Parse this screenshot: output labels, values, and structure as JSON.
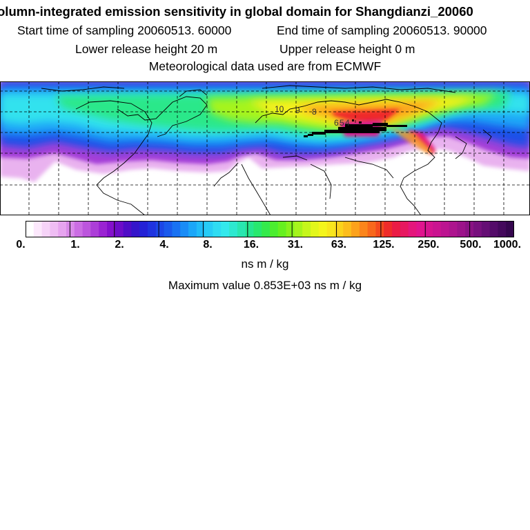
{
  "header": {
    "title": "olumn-integrated emission sensitivity in global domain for Shangdianzi_20060",
    "start_time": "Start time of sampling 20060513. 60000",
    "end_time": "End time of sampling 20060513. 90000",
    "lower_release": "Lower release height   20 m",
    "upper_release": "Upper release height    0 m",
    "met_data": "Meteorological data used are from ECMWF"
  },
  "map": {
    "contour_labels": [
      "10",
      "9",
      "8",
      "6",
      "5",
      "4"
    ]
  },
  "colorbar": {
    "tick_labels": [
      "0.",
      "1.",
      "2.",
      "4.",
      "8.",
      "16.",
      "31.",
      "63.",
      "125.",
      "250.",
      "500.",
      "1000."
    ],
    "colors": [
      "#ffffff",
      "#fce8fc",
      "#f6d3f8",
      "#efbdf4",
      "#e6a4ef",
      "#d98ae9",
      "#cb6de3",
      "#bc55dd",
      "#ac3ed8",
      "#9a23d2",
      "#8410cc",
      "#6d0cc8",
      "#4f0cc6",
      "#3515ca",
      "#2422d6",
      "#1f33df",
      "#1c46e6",
      "#1a5aec",
      "#1972f2",
      "#1a8cf6",
      "#1ba6f8",
      "#20bbf8",
      "#27ccf6",
      "#2fdcf2",
      "#33e8ec",
      "#2ee8d0",
      "#29e6b0",
      "#26e690",
      "#28e86e",
      "#34ea4c",
      "#4ced30",
      "#66f020",
      "#86f21c",
      "#a6f41c",
      "#c5f61c",
      "#e2f71c",
      "#f4f51c",
      "#f8e61c",
      "#fbd31c",
      "#fcbd1c",
      "#fca21c",
      "#fb851c",
      "#f8681c",
      "#f44a1e",
      "#ef2c2a",
      "#ea1c44",
      "#e71860",
      "#e4167c",
      "#e0148e",
      "#d6148f",
      "#ca1490",
      "#bc1490",
      "#ad148e",
      "#9c138a",
      "#8a1284",
      "#77107d",
      "#650e74",
      "#540c69",
      "#44095c",
      "#35064e"
    ],
    "unit": "ns m / kg",
    "max_value": "Maximum value  0.853E+03 ns m / kg"
  }
}
